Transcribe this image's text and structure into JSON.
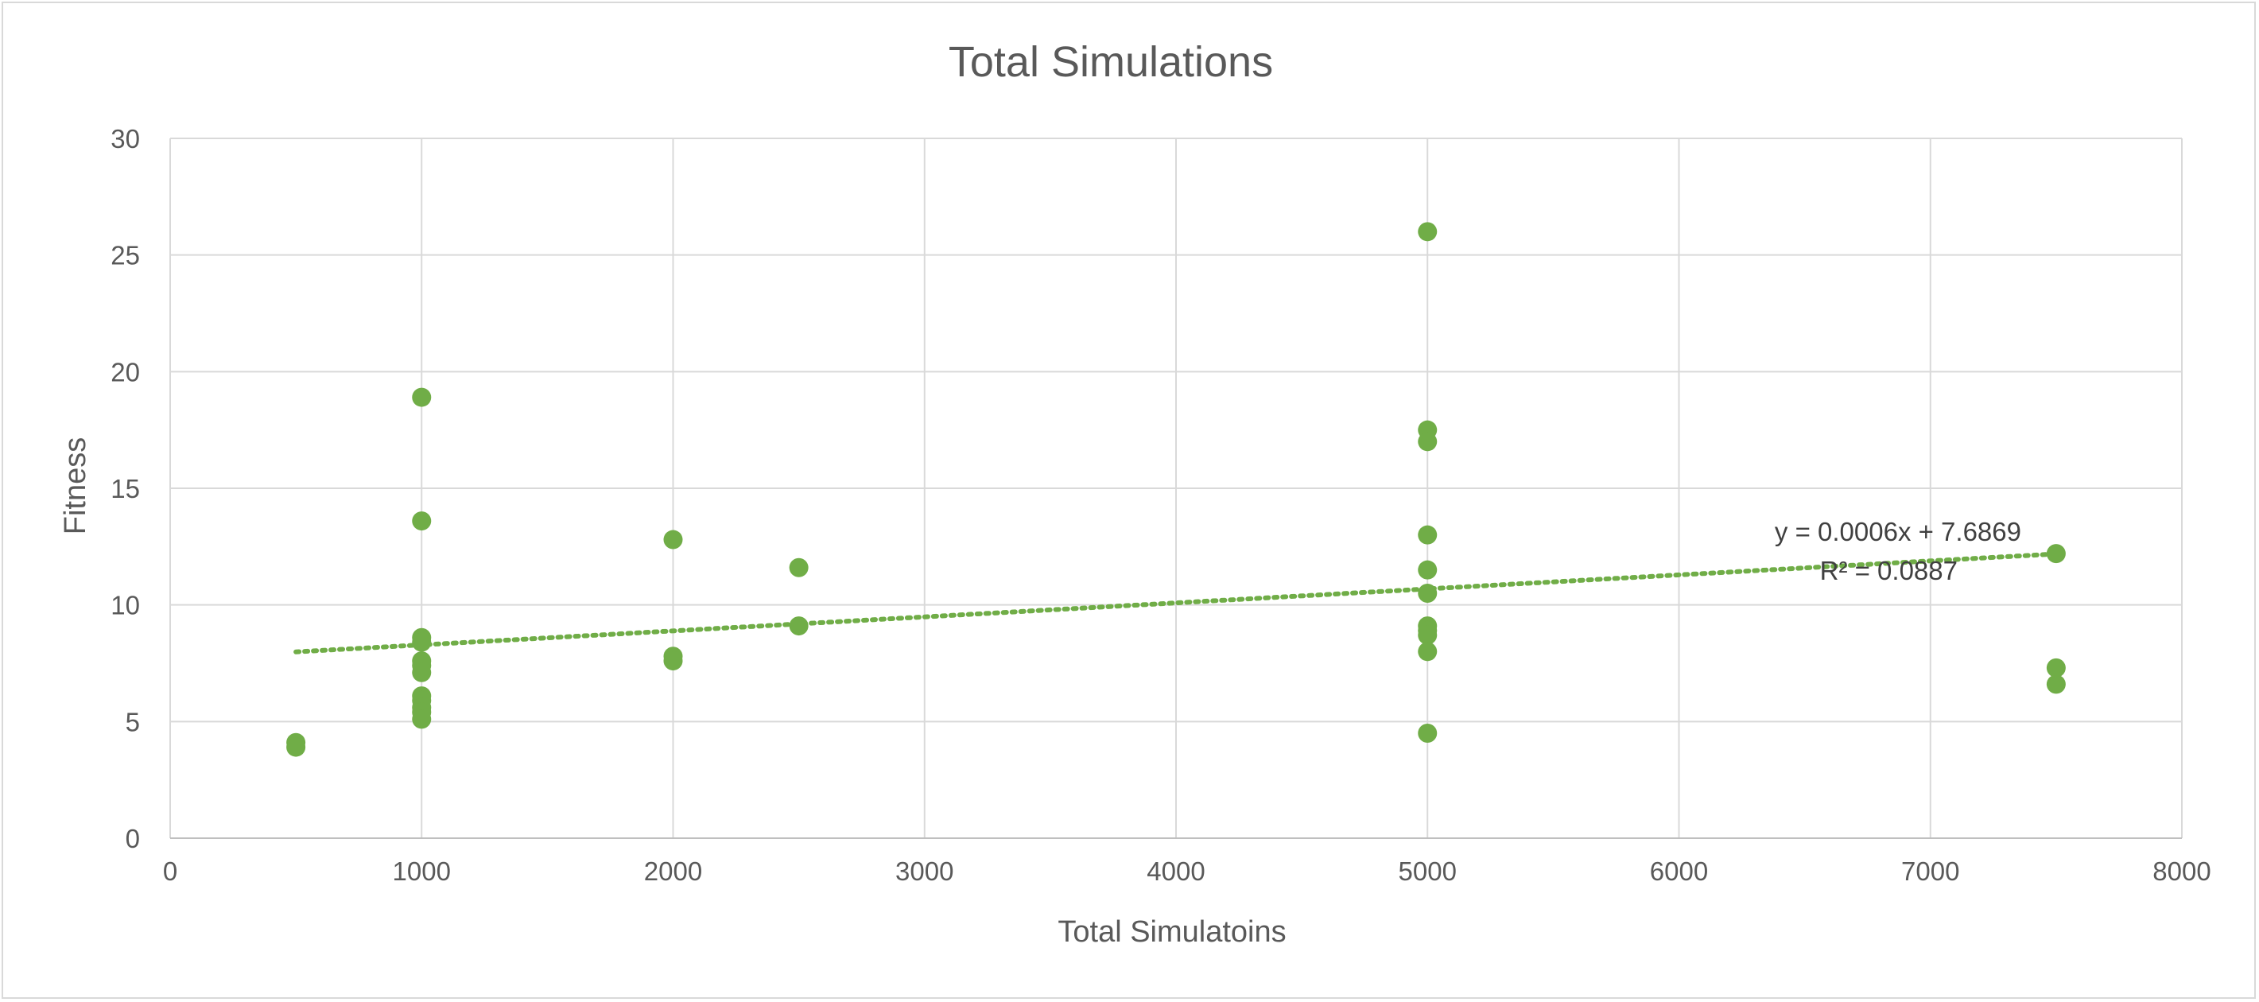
{
  "chart_data": {
    "type": "scatter",
    "title": "Total Simulations",
    "xlabel": "Total Simulatoins",
    "ylabel": "Fitness",
    "xlim": [
      0,
      8000
    ],
    "ylim": [
      0,
      30
    ],
    "xticks": [
      "0",
      "1000",
      "2000",
      "3000",
      "4000",
      "5000",
      "6000",
      "7000",
      "8000"
    ],
    "yticks": [
      "0",
      "5",
      "10",
      "15",
      "20",
      "25",
      "30"
    ],
    "grid": true,
    "legend": "none",
    "series": [
      {
        "color": "#70ad47",
        "points": [
          {
            "x": 500,
            "y": 4.1
          },
          {
            "x": 500,
            "y": 3.9
          },
          {
            "x": 1000,
            "y": 18.9
          },
          {
            "x": 1000,
            "y": 13.6
          },
          {
            "x": 1000,
            "y": 8.6
          },
          {
            "x": 1000,
            "y": 8.4
          },
          {
            "x": 1000,
            "y": 7.6
          },
          {
            "x": 1000,
            "y": 7.4
          },
          {
            "x": 1000,
            "y": 7.1
          },
          {
            "x": 1000,
            "y": 6.1
          },
          {
            "x": 1000,
            "y": 5.9
          },
          {
            "x": 1000,
            "y": 5.6
          },
          {
            "x": 1000,
            "y": 5.4
          },
          {
            "x": 1000,
            "y": 5.1
          },
          {
            "x": 2000,
            "y": 12.8
          },
          {
            "x": 2000,
            "y": 7.8
          },
          {
            "x": 2000,
            "y": 7.6
          },
          {
            "x": 2500,
            "y": 11.6
          },
          {
            "x": 2500,
            "y": 9.1
          },
          {
            "x": 5000,
            "y": 26.0
          },
          {
            "x": 5000,
            "y": 17.5
          },
          {
            "x": 5000,
            "y": 17.0
          },
          {
            "x": 5000,
            "y": 13.0
          },
          {
            "x": 5000,
            "y": 11.5
          },
          {
            "x": 5000,
            "y": 10.5
          },
          {
            "x": 5000,
            "y": 9.1
          },
          {
            "x": 5000,
            "y": 8.9
          },
          {
            "x": 5000,
            "y": 8.7
          },
          {
            "x": 5000,
            "y": 8.0
          },
          {
            "x": 5000,
            "y": 4.5
          },
          {
            "x": 7500,
            "y": 12.2
          },
          {
            "x": 7500,
            "y": 7.3
          },
          {
            "x": 7500,
            "y": 6.6
          }
        ]
      }
    ],
    "trendline": {
      "type": "linear",
      "style": "dotted",
      "color": "#70ad47",
      "slope": 0.0006,
      "intercept": 7.6869,
      "x_range": [
        500,
        7500
      ],
      "equation_label": "y = 0.0006x + 7.6869",
      "r2_label": "R² = 0.0887"
    }
  }
}
